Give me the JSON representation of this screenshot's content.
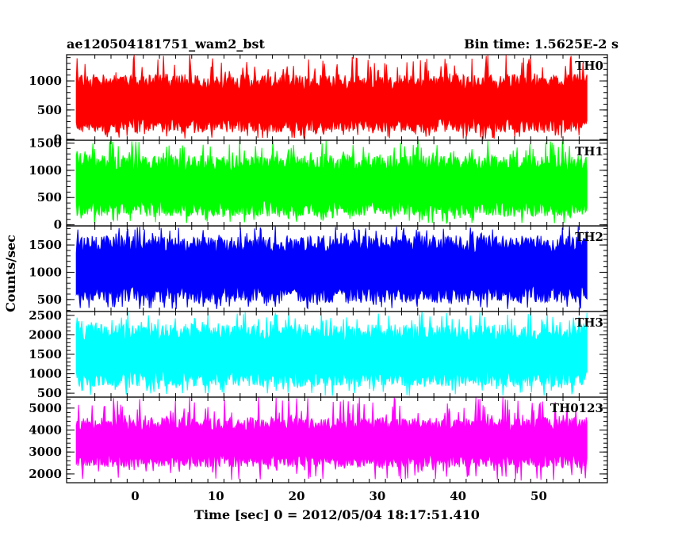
{
  "header": {
    "title": "ae120504181751_wam2_bst",
    "bin_time": "Bin time: 1.5625E-2 s"
  },
  "chart_data": {
    "type": "line",
    "xlabel": "Time [sec] 0 = 2012/05/04 18:17:51.410",
    "ylabel": "Counts/sec",
    "xlim": [
      -8.5,
      58.5
    ],
    "x_ticks": [
      0,
      10,
      20,
      30,
      40,
      50
    ],
    "data_xrange": [
      -7.3,
      56.0
    ],
    "panels": [
      {
        "name": "TH0",
        "color": "#ff0000",
        "ylim": [
          -20,
          1450
        ],
        "y_ticks": [
          0,
          500,
          1000
        ],
        "mean": 600,
        "band": [
          290,
          930
        ],
        "spike_range": [
          0,
          1450
        ]
      },
      {
        "name": "TH1",
        "color": "#00ff00",
        "ylim": [
          -20,
          1550
        ],
        "y_ticks": [
          0,
          500,
          1000,
          1500
        ],
        "mean": 700,
        "band": [
          350,
          1070
        ],
        "spike_range": [
          30,
          1550
        ]
      },
      {
        "name": "TH2",
        "color": "#0000ff",
        "ylim": [
          280,
          1850
        ],
        "y_ticks": [
          500,
          1000,
          1500
        ],
        "mean": 1050,
        "band": [
          660,
          1450
        ],
        "spike_range": [
          320,
          1850
        ]
      },
      {
        "name": "TH3",
        "color": "#00ffff",
        "ylim": [
          400,
          2600
        ],
        "y_ticks": [
          500,
          1000,
          1500,
          2000,
          2500
        ],
        "mean": 1450,
        "band": [
          950,
          1980
        ],
        "spike_range": [
          430,
          2600
        ]
      },
      {
        "name": "TH0123",
        "color": "#ff00ff",
        "ylim": [
          1600,
          5500
        ],
        "y_ticks": [
          2000,
          3000,
          4000,
          5000
        ],
        "mean": 3400,
        "band": [
          2700,
          4150
        ],
        "spike_range": [
          1700,
          5500
        ]
      }
    ]
  }
}
